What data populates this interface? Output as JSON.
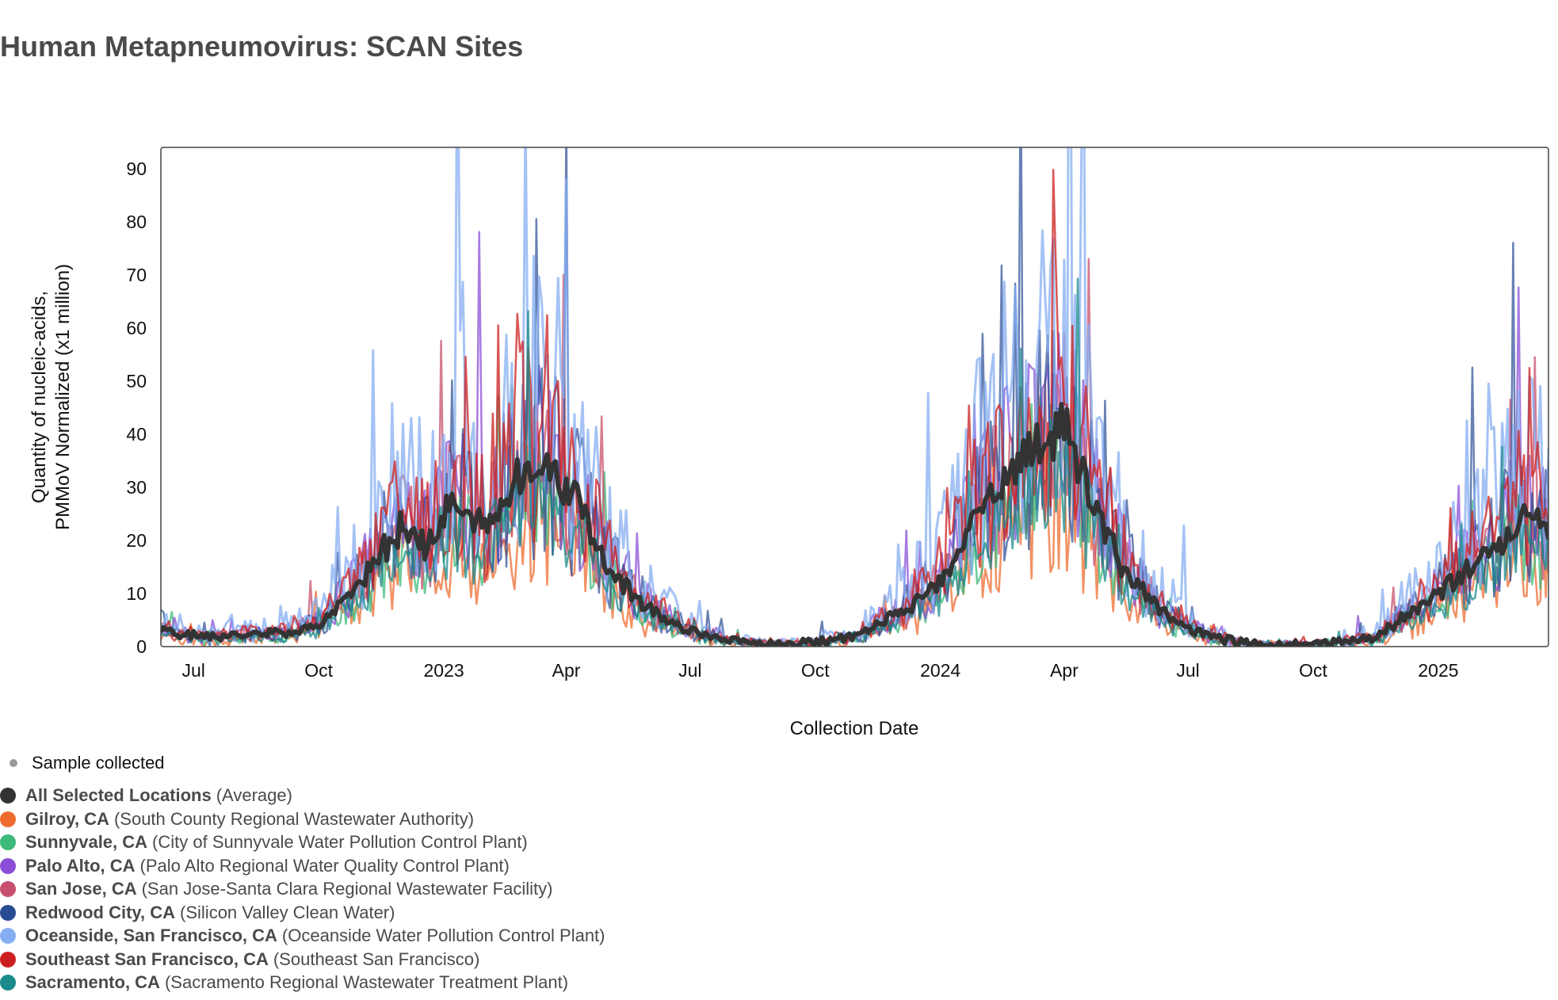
{
  "title": "Human Metapneumovirus: SCAN Sites",
  "chart_data": {
    "type": "line",
    "title": "Human Metapneumovirus: SCAN Sites",
    "xlabel": "Collection Date",
    "ylabel_lines": [
      "Quantity of nucleic-acids,",
      "PMMoV Normalized (x1 million)"
    ],
    "ylim": [
      0,
      94
    ],
    "xlim": [
      "2022-06-07",
      "2025-03-23"
    ],
    "y_ticks": [
      0,
      10,
      20,
      30,
      40,
      50,
      60,
      70,
      80,
      90
    ],
    "x_ticks": [
      {
        "date": "2022-07-01",
        "label": "Jul"
      },
      {
        "date": "2022-10-01",
        "label": "Oct"
      },
      {
        "date": "2023-01-01",
        "label": "2023"
      },
      {
        "date": "2023-04-01",
        "label": "Apr"
      },
      {
        "date": "2023-07-01",
        "label": "Jul"
      },
      {
        "date": "2023-10-01",
        "label": "Oct"
      },
      {
        "date": "2024-01-01",
        "label": "2024"
      },
      {
        "date": "2024-04-01",
        "label": "Apr"
      },
      {
        "date": "2024-07-01",
        "label": "Jul"
      },
      {
        "date": "2024-10-01",
        "label": "Oct"
      },
      {
        "date": "2025-01-01",
        "label": "2025"
      }
    ],
    "sample_legend_label": "Sample collected",
    "sample_color": "#999999",
    "series": [
      {
        "name": "All Selected Locations",
        "facility": "(Average)",
        "color": "#333333",
        "width": 6,
        "opacity": 1,
        "scale": 1.0,
        "noise": 0.12,
        "seed": 1
      },
      {
        "name": "Gilroy, CA",
        "facility": "(South County Regional Wastewater Authority)",
        "color": "#ee6c30",
        "width": 2.5,
        "opacity": 0.75,
        "scale": 0.72,
        "noise": 0.55,
        "seed": 2
      },
      {
        "name": "Sunnyvale, CA",
        "facility": "(City of Sunnyvale Water Pollution Control Plant)",
        "color": "#3dba7a",
        "width": 2.5,
        "opacity": 0.75,
        "scale": 0.85,
        "noise": 0.45,
        "seed": 3
      },
      {
        "name": "Palo Alto, CA",
        "facility": "(Palo Alto Regional Water Quality Control Plant)",
        "color": "#8a4fd6",
        "width": 2.5,
        "opacity": 0.75,
        "scale": 1.1,
        "noise": 0.5,
        "seed": 4
      },
      {
        "name": "San Jose, CA",
        "facility": "(San Jose-Santa Clara Regional Wastewater Facility)",
        "color": "#c8506e",
        "width": 2.5,
        "opacity": 0.75,
        "scale": 1.0,
        "noise": 0.45,
        "seed": 5
      },
      {
        "name": "Redwood City, CA",
        "facility": "(Silicon Valley Clean Water)",
        "color": "#284c94",
        "width": 2.5,
        "opacity": 0.7,
        "scale": 1.05,
        "noise": 0.55,
        "seed": 6
      },
      {
        "name": "Oceanside, San Francisco, CA",
        "facility": "(Oceanside Water Pollution Control Plant)",
        "color": "#86aef2",
        "width": 3,
        "opacity": 0.75,
        "scale": 1.45,
        "noise": 0.6,
        "seed": 7
      },
      {
        "name": "Southeast San Francisco, CA",
        "facility": "(Southeast San Francisco)",
        "color": "#cc1f1f",
        "width": 2.5,
        "opacity": 0.75,
        "scale": 1.15,
        "noise": 0.5,
        "seed": 8
      },
      {
        "name": "Sacramento, CA",
        "facility": "(Sacramento Regional Wastewater Treatment Plant)",
        "color": "#1a8a8a",
        "width": 2.5,
        "opacity": 0.75,
        "scale": 0.8,
        "noise": 0.4,
        "seed": 9
      }
    ],
    "average_profile": [
      {
        "date": "2022-06-07",
        "value": 3
      },
      {
        "date": "2022-07-01",
        "value": 2
      },
      {
        "date": "2022-08-01",
        "value": 2
      },
      {
        "date": "2022-09-01",
        "value": 2.5
      },
      {
        "date": "2022-10-01",
        "value": 4
      },
      {
        "date": "2022-11-01",
        "value": 12
      },
      {
        "date": "2022-12-01",
        "value": 23
      },
      {
        "date": "2022-12-20",
        "value": 18
      },
      {
        "date": "2023-01-05",
        "value": 27
      },
      {
        "date": "2023-02-01",
        "value": 22
      },
      {
        "date": "2023-03-01",
        "value": 34
      },
      {
        "date": "2023-03-20",
        "value": 33
      },
      {
        "date": "2023-04-10",
        "value": 27
      },
      {
        "date": "2023-05-01",
        "value": 15
      },
      {
        "date": "2023-06-01",
        "value": 7
      },
      {
        "date": "2023-07-01",
        "value": 3
      },
      {
        "date": "2023-08-01",
        "value": 1
      },
      {
        "date": "2023-09-01",
        "value": 0.5
      },
      {
        "date": "2023-10-01",
        "value": 0.8
      },
      {
        "date": "2023-11-01",
        "value": 2
      },
      {
        "date": "2023-12-01",
        "value": 6
      },
      {
        "date": "2024-01-01",
        "value": 12
      },
      {
        "date": "2024-02-01",
        "value": 26
      },
      {
        "date": "2024-03-01",
        "value": 35
      },
      {
        "date": "2024-04-01",
        "value": 42
      },
      {
        "date": "2024-04-20",
        "value": 28
      },
      {
        "date": "2024-05-15",
        "value": 14
      },
      {
        "date": "2024-06-15",
        "value": 6
      },
      {
        "date": "2024-07-15",
        "value": 2
      },
      {
        "date": "2024-08-15",
        "value": 0.5
      },
      {
        "date": "2024-10-01",
        "value": 0.3
      },
      {
        "date": "2024-11-15",
        "value": 1.5
      },
      {
        "date": "2024-12-15",
        "value": 7
      },
      {
        "date": "2025-01-15",
        "value": 13
      },
      {
        "date": "2025-02-15",
        "value": 19
      },
      {
        "date": "2025-03-01",
        "value": 24
      },
      {
        "date": "2025-03-23",
        "value": 22
      }
    ]
  }
}
